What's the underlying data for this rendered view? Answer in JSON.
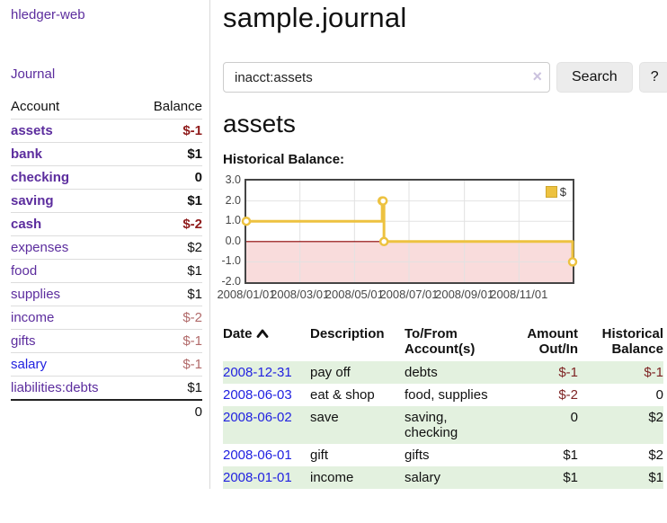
{
  "sidebar": {
    "brand": "hledger-web",
    "journal_label": "Journal",
    "accounts_table": {
      "account_header": "Account",
      "balance_header": "Balance",
      "rows": [
        {
          "account": "assets",
          "balance": "$-1"
        },
        {
          "account": "bank",
          "balance": "$1"
        },
        {
          "account": "checking",
          "balance": "0"
        },
        {
          "account": "saving",
          "balance": "$1"
        },
        {
          "account": "cash",
          "balance": "$-2"
        },
        {
          "account": "expenses",
          "balance": "$2"
        },
        {
          "account": "food",
          "balance": "$1"
        },
        {
          "account": "supplies",
          "balance": "$1"
        },
        {
          "account": "income",
          "balance": "$-2"
        },
        {
          "account": "gifts",
          "balance": "$-1"
        },
        {
          "account": "salary",
          "balance": "$-1"
        },
        {
          "account": "liabilities:debts",
          "balance": "$1"
        }
      ],
      "total": "0"
    }
  },
  "main": {
    "title": "sample.journal",
    "search": {
      "value": "inacct:assets",
      "clear_icon": "×",
      "button_label": "Search",
      "help_label": "?"
    },
    "account_heading": "assets",
    "chart_label": "Historical Balance:"
  },
  "register": {
    "headers": {
      "date": "Date",
      "description": "Description",
      "account": "To/From Account(s)",
      "amount": "Amount Out/In",
      "balance": "Historical Balance"
    },
    "rows": [
      {
        "date": "2008-12-31",
        "description": "pay off",
        "accounts": "debts",
        "amount": "$-1",
        "balance": "$-1"
      },
      {
        "date": "2008-06-03",
        "description": "eat & shop",
        "accounts": "food, supplies",
        "amount": "$-2",
        "balance": "0"
      },
      {
        "date": "2008-06-02",
        "description": "save",
        "accounts": "saving, checking",
        "amount": "0",
        "balance": "$2"
      },
      {
        "date": "2008-06-01",
        "description": "gift",
        "accounts": "gifts",
        "amount": "$1",
        "balance": "$2"
      },
      {
        "date": "2008-01-01",
        "description": "income",
        "accounts": "salary",
        "amount": "$1",
        "balance": "$1"
      }
    ]
  },
  "chart_data": {
    "type": "line",
    "title": "Historical Balance",
    "style": "steps",
    "series": [
      {
        "name": "$",
        "color": "#edc240",
        "points": [
          {
            "date": "2008/01/01",
            "day": 0,
            "value": 1
          },
          {
            "date": "2008/06/01",
            "day": 152,
            "value": 2
          },
          {
            "date": "2008/06/02",
            "day": 153,
            "value": 2
          },
          {
            "date": "2008/06/03",
            "day": 154,
            "value": 0
          },
          {
            "date": "2008/12/31",
            "day": 365,
            "value": -1
          }
        ]
      }
    ],
    "x_ticks": [
      {
        "label": "2008/01/01",
        "day": 0
      },
      {
        "label": "2008/03/01",
        "day": 60
      },
      {
        "label": "2008/05/01",
        "day": 121
      },
      {
        "label": "2008/07/01",
        "day": 182
      },
      {
        "label": "2008/09/01",
        "day": 244
      },
      {
        "label": "2008/11/01",
        "day": 305
      }
    ],
    "y_ticks": [
      {
        "label": "3.0",
        "value": 3
      },
      {
        "label": "2.0",
        "value": 2
      },
      {
        "label": "1.0",
        "value": 1
      },
      {
        "label": "0.0",
        "value": 0
      },
      {
        "label": "-1.0",
        "value": -1
      },
      {
        "label": "-2.0",
        "value": -2
      }
    ],
    "ylim": [
      -2,
      3
    ],
    "xlim_days": [
      0,
      365
    ],
    "legend": {
      "label": "$",
      "position": "top-right"
    },
    "grid": true,
    "negative_fill": "#f9dcdc",
    "zero_line_color": "#8b0000"
  }
}
